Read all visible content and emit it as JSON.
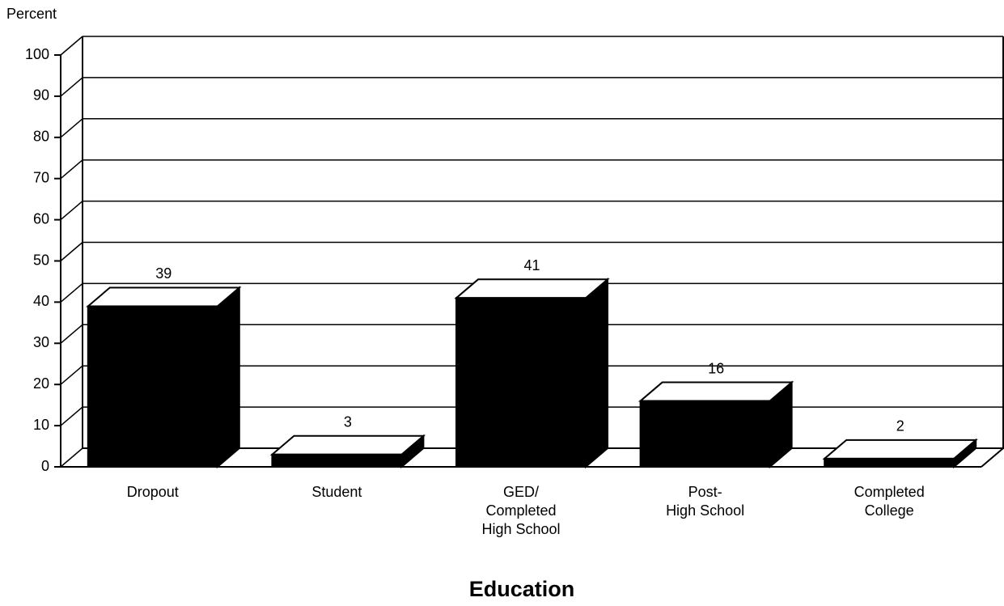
{
  "chart_data": {
    "type": "bar3d",
    "y_axis_label": "Percent",
    "x_axis_label": "Education",
    "categories": [
      "Dropout",
      "Student",
      "GED/\nCompleted\nHigh School",
      "Post-\nHigh School",
      "Completed\nCollege"
    ],
    "values": [
      39,
      3,
      41,
      16,
      2
    ],
    "color": "#000000",
    "ylim": [
      0,
      100
    ],
    "yticks": [
      0,
      10,
      20,
      30,
      40,
      50,
      60,
      70,
      80,
      90,
      100
    ],
    "grid": true
  }
}
